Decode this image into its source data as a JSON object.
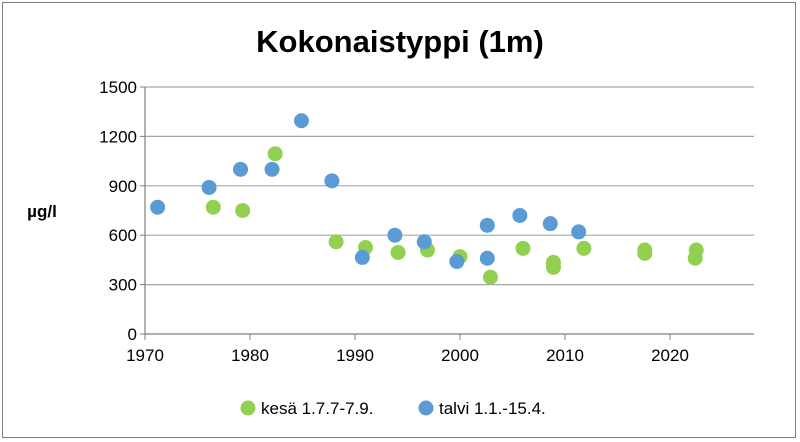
{
  "chart_data": {
    "type": "scatter",
    "title": "Kokonaistyppi (1m)",
    "xlabel": "",
    "ylabel": "µg/l",
    "xlim": [
      1970,
      2028
    ],
    "ylim": [
      0,
      1500
    ],
    "x_ticks": [
      1970,
      1980,
      1990,
      2000,
      2010,
      2020
    ],
    "y_ticks": [
      0,
      300,
      600,
      900,
      1200,
      1500
    ],
    "grid": "horizontal",
    "legend_position": "bottom",
    "series": [
      {
        "name": "kesä 1.7.7-7.9.",
        "color": "#92d050",
        "points": [
          [
            1976.5,
            770
          ],
          [
            1979.3,
            750
          ],
          [
            1982.4,
            1095
          ],
          [
            1988.2,
            560
          ],
          [
            1991.0,
            525
          ],
          [
            1994.1,
            495
          ],
          [
            1996.9,
            510
          ],
          [
            2000.0,
            470
          ],
          [
            2002.9,
            345
          ],
          [
            2006.0,
            520
          ],
          [
            2008.9,
            435
          ],
          [
            2008.9,
            405
          ],
          [
            2011.8,
            520
          ],
          [
            2017.6,
            510
          ],
          [
            2017.6,
            490
          ],
          [
            2022.5,
            510
          ],
          [
            2022.4,
            460
          ]
        ]
      },
      {
        "name": "talvi 1.1.-15.4.",
        "color": "#5b9bd5",
        "points": [
          [
            1971.2,
            770
          ],
          [
            1976.1,
            890
          ],
          [
            1979.1,
            1000
          ],
          [
            1982.1,
            1000
          ],
          [
            1984.9,
            1295
          ],
          [
            1987.8,
            930
          ],
          [
            1990.7,
            465
          ],
          [
            1993.8,
            600
          ],
          [
            1996.6,
            560
          ],
          [
            1999.7,
            440
          ],
          [
            2002.6,
            660
          ],
          [
            2002.6,
            460
          ],
          [
            2005.7,
            720
          ],
          [
            2008.6,
            670
          ],
          [
            2011.3,
            620
          ]
        ]
      }
    ]
  }
}
